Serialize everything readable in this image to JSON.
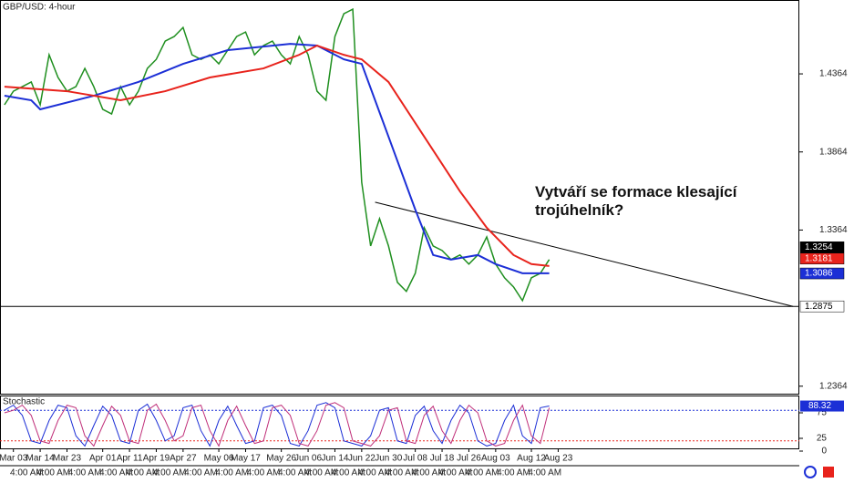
{
  "chart_data": {
    "type": "line",
    "title": "GBP/USD: 4-hour",
    "annotation": [
      "Vytváří se formace klesající",
      "trojúhelník?"
    ],
    "xlim": [
      -0.5,
      89
    ],
    "ylim": [
      1.2316,
      1.4837
    ],
    "yticks": [
      1.4364,
      1.3864,
      1.3364,
      1.2364
    ],
    "xticks": [
      {
        "value": 1,
        "label": "Mar 03"
      },
      {
        "value": 4,
        "label": "Mar 14"
      },
      {
        "value": 7,
        "label": "Mar 23"
      },
      {
        "value": 11,
        "label": "Apr 01"
      },
      {
        "value": 14,
        "label": "Apr 11"
      },
      {
        "value": 17,
        "label": "Apr 19"
      },
      {
        "value": 20,
        "label": "Apr 27"
      },
      {
        "value": 24,
        "label": "May 06"
      },
      {
        "value": 27,
        "label": "May 17"
      },
      {
        "value": 31,
        "label": "May 26"
      },
      {
        "value": 34,
        "label": "Jun 06"
      },
      {
        "value": 37,
        "label": "Jun 14"
      },
      {
        "value": 40,
        "label": "Jun 22"
      },
      {
        "value": 43,
        "label": "Jun 30"
      },
      {
        "value": 46,
        "label": "Jul 08"
      },
      {
        "value": 49,
        "label": "Jul 18"
      },
      {
        "value": 52,
        "label": "Jul 26"
      },
      {
        "value": 55,
        "label": "Aug 03"
      },
      {
        "value": 59,
        "label": "Aug 12"
      },
      {
        "value": 62,
        "label": "Aug 23"
      }
    ],
    "time_labels": [
      "4:00 AM",
      "4:00 AM",
      "4:00 AM",
      "4:00 AM",
      "4:00 AM",
      "4:00 AM",
      "4:00 AM",
      "4:00 AM",
      "4:00 AM",
      "4:00 AM",
      "4:00 AM",
      "4:00 AM",
      "4:00 AM",
      "4:00 AM",
      "4:00 AM",
      "4:00 AM",
      "4:00 AM",
      "4:00 AM",
      "4:00 AM"
    ],
    "series": [
      {
        "color": "#1f8f1f",
        "values": [
          1.4166,
          1.4253,
          1.4282,
          1.4312,
          1.4166,
          1.4486,
          1.4341,
          1.4253,
          1.4282,
          1.4399,
          1.4282,
          1.4137,
          1.4107,
          1.4282,
          1.4166,
          1.4253,
          1.4399,
          1.4457,
          1.4574,
          1.4603,
          1.4661,
          1.4486,
          1.4457,
          1.4486,
          1.4428,
          1.4516,
          1.4603,
          1.4632,
          1.4486,
          1.4545,
          1.4574,
          1.4486,
          1.4428,
          1.4603,
          1.4486,
          1.4253,
          1.4195,
          1.4603,
          1.4749,
          1.4778,
          1.367,
          1.3262,
          1.3437,
          1.3262,
          1.3029,
          1.2971,
          1.3087,
          1.3379,
          1.3262,
          1.3233,
          1.3175,
          1.3204,
          1.3146,
          1.3204,
          1.332,
          1.3146,
          1.3058,
          1.3,
          1.2912,
          1.3058,
          1.3087,
          1.3175
        ]
      },
      {
        "color": "#1c2fd6",
        "x": [
          0,
          3,
          4,
          10,
          15,
          20,
          25,
          32,
          35,
          38,
          40,
          43,
          46,
          48,
          50,
          53,
          55,
          58,
          61
        ],
        "values": [
          1.4224,
          1.4195,
          1.4137,
          1.4224,
          1.4312,
          1.4428,
          1.4516,
          1.4556,
          1.4545,
          1.4457,
          1.4428,
          1.3962,
          1.3495,
          1.3204,
          1.3175,
          1.3204,
          1.3146,
          1.3087,
          1.3087
        ]
      },
      {
        "color": "#e8231c",
        "x": [
          0,
          7,
          13,
          18,
          23,
          29,
          33,
          35,
          38,
          40,
          43,
          47,
          51,
          54,
          57,
          59,
          61
        ],
        "values": [
          1.4282,
          1.4253,
          1.4195,
          1.4253,
          1.4341,
          1.4399,
          1.4486,
          1.4545,
          1.4486,
          1.4457,
          1.4312,
          1.3962,
          1.3612,
          1.3379,
          1.3204,
          1.3146,
          1.3134
        ]
      }
    ],
    "lines": [
      {
        "x": [
          41.5,
          88.3
        ],
        "values": [
          1.3542,
          1.2875
        ]
      },
      {
        "x": [
          -0.5,
          89
        ],
        "values": [
          1.2875,
          1.2875
        ]
      }
    ],
    "price_tags": [
      {
        "value": 1.3254,
        "color": "#000000"
      },
      {
        "value": 1.3181,
        "color": "#e8231c"
      },
      {
        "value": 1.3086,
        "color": "#1c2fd6"
      },
      {
        "value": 1.2875,
        "color": "#ffffff"
      }
    ],
    "stochastic": {
      "title": "Stochastic",
      "ylim": [
        0,
        100
      ],
      "yticks": [
        0,
        25,
        75
      ],
      "levels": [
        {
          "value": 80,
          "color": "#1c2fd6"
        },
        {
          "value": 20,
          "color": "#e8231c"
        }
      ],
      "tag": 88.32,
      "series": [
        {
          "color": "#1c2fd6",
          "values": [
            80,
            90,
            70,
            20,
            15,
            60,
            90,
            85,
            30,
            10,
            50,
            88,
            70,
            20,
            15,
            80,
            92,
            60,
            20,
            30,
            85,
            90,
            40,
            10,
            60,
            88,
            50,
            15,
            20,
            85,
            90,
            70,
            15,
            10,
            40,
            90,
            95,
            85,
            20,
            15,
            10,
            30,
            80,
            85,
            20,
            15,
            70,
            88,
            40,
            15,
            60,
            90,
            75,
            20,
            10,
            15,
            60,
            90,
            30,
            15,
            85,
            88.32
          ]
        },
        {
          "color": "#c0307a",
          "values": [
            75,
            80,
            90,
            70,
            20,
            15,
            60,
            90,
            85,
            30,
            10,
            50,
            88,
            70,
            20,
            15,
            80,
            92,
            60,
            20,
            30,
            85,
            90,
            40,
            10,
            60,
            88,
            50,
            15,
            20,
            85,
            90,
            70,
            15,
            10,
            40,
            90,
            95,
            85,
            20,
            15,
            10,
            30,
            80,
            85,
            20,
            15,
            70,
            88,
            40,
            15,
            60,
            90,
            75,
            20,
            10,
            15,
            60,
            90,
            30,
            15,
            85
          ]
        }
      ]
    }
  }
}
